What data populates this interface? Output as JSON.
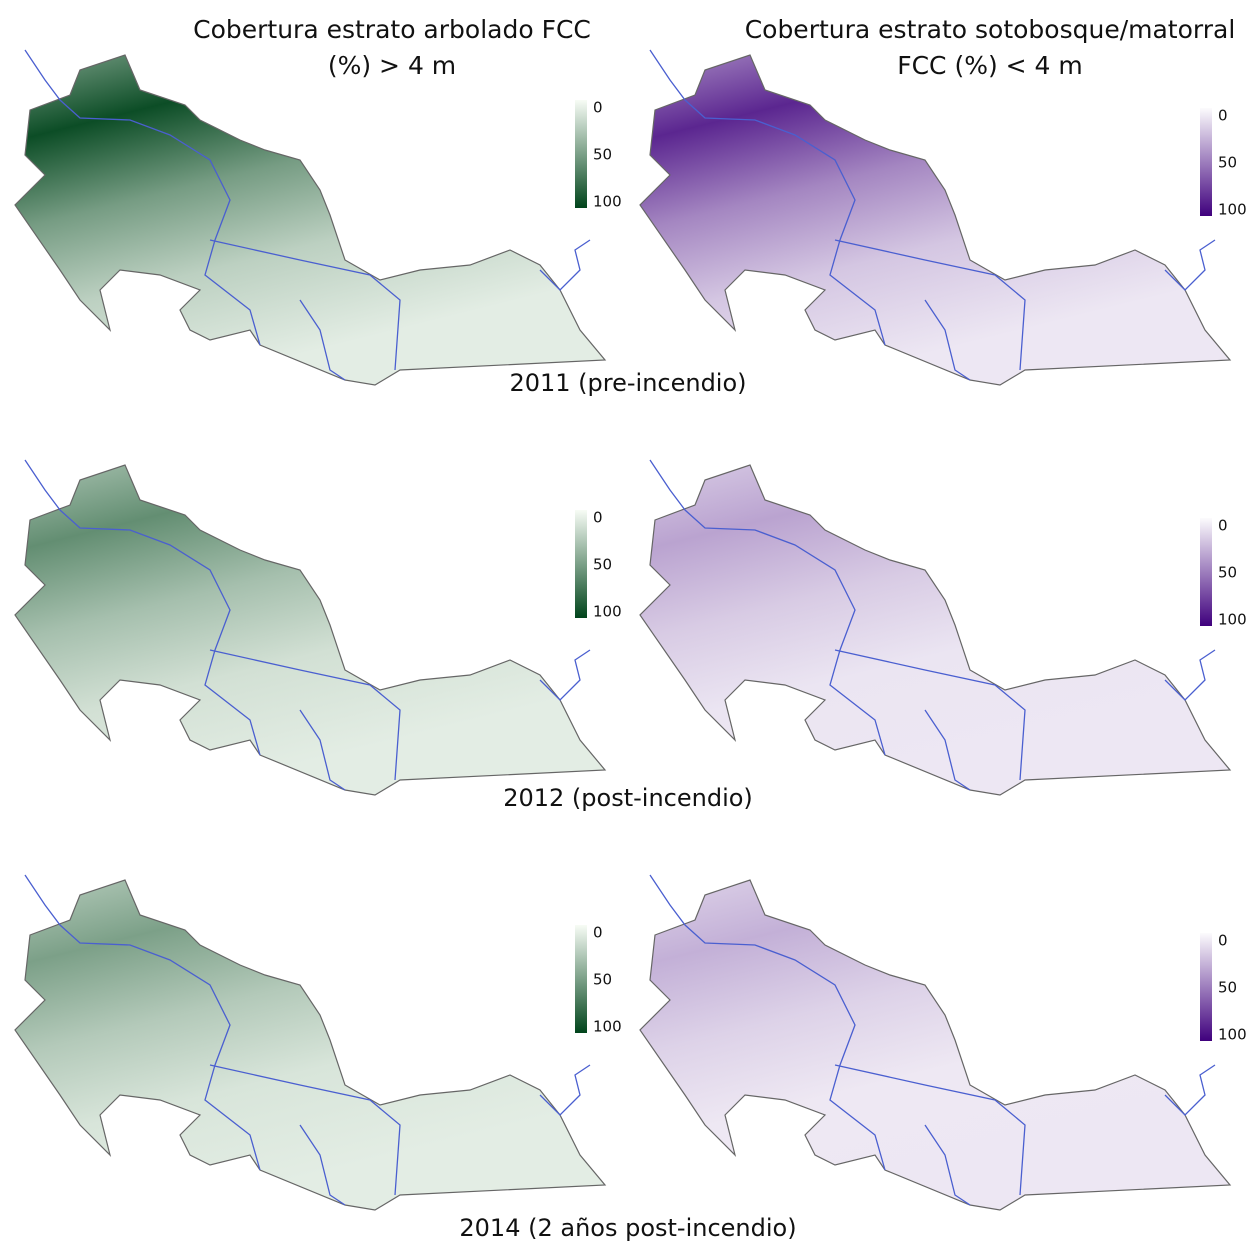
{
  "columns": [
    {
      "title": [
        "Cobertura estrato arbolado FCC",
        "(%) > 4 m"
      ],
      "colors": [
        "#f7fcf5",
        "#00441b"
      ]
    },
    {
      "title": [
        "Cobertura estrato sotobosque/matorral",
        "FCC (%) < 4 m"
      ],
      "colors": [
        "#fcfbfd",
        "#3f007d"
      ]
    }
  ],
  "rows": [
    {
      "label": "2011 (pre-incendio)",
      "legends": [
        [
          0,
          50,
          100
        ],
        [
          0,
          50,
          100
        ]
      ]
    },
    {
      "label": "2012 (post-incendio)",
      "legends": [
        [
          0,
          50,
          100
        ],
        [
          0,
          50,
          100
        ]
      ]
    },
    {
      "label": "2014 (2 años post-incendio)",
      "legends": [
        [
          0,
          50,
          100
        ],
        [
          0,
          50,
          100
        ]
      ]
    }
  ]
}
